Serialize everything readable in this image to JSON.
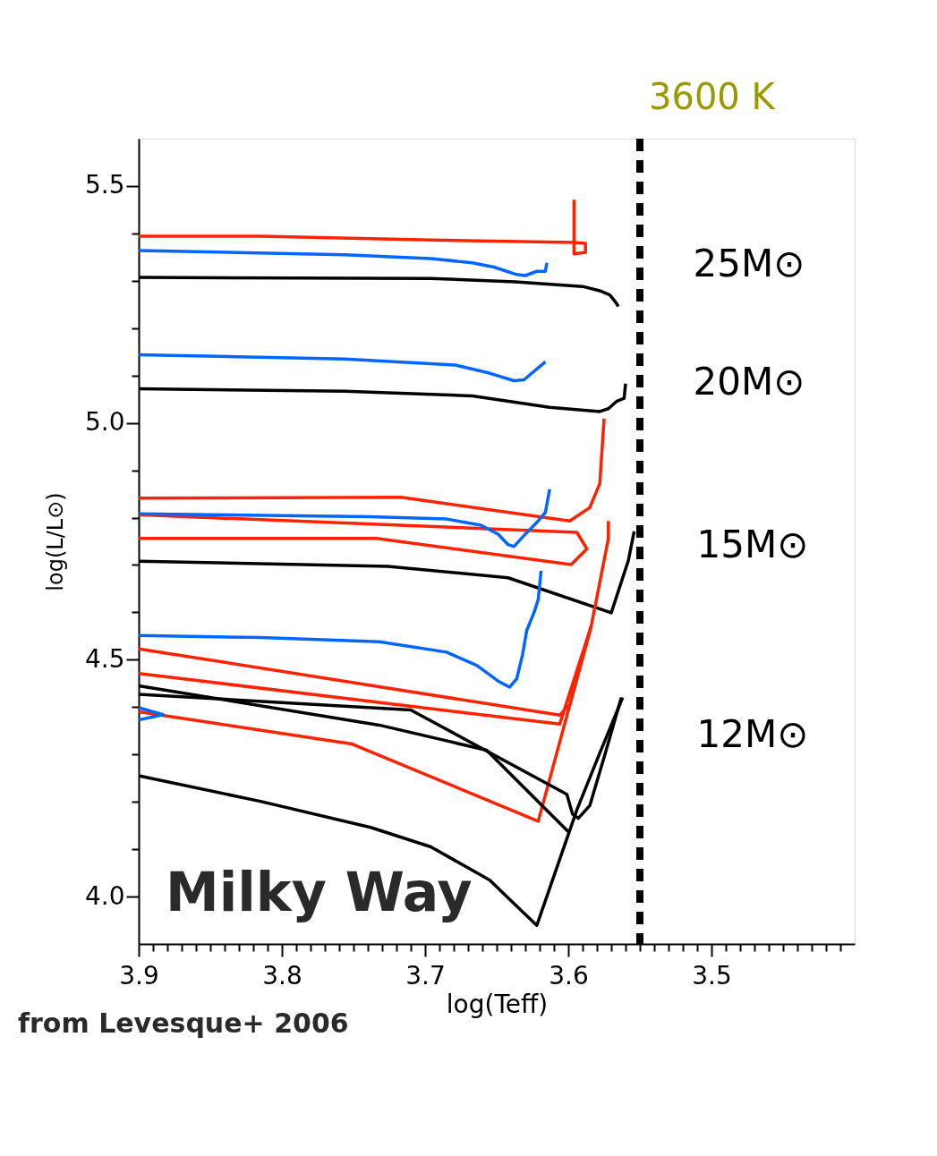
{
  "chart_data": {
    "type": "line",
    "xlabel": "log(Teff)",
    "ylabel": "log(L/L⊙)",
    "xlim": [
      3.9,
      3.4
    ],
    "ylim": [
      3.9,
      5.6
    ],
    "xticks": [
      3.9,
      {
        "value": 3.89,
        "label": null
      },
      {
        "value": 3.88,
        "label": null
      },
      {
        "value": 3.87,
        "label": null
      },
      {
        "value": 3.86,
        "label": null
      },
      {
        "value": 3.85,
        "label": null
      },
      {
        "value": 3.84,
        "label": null
      },
      {
        "value": 3.83,
        "label": null
      },
      {
        "value": 3.82,
        "label": null
      },
      {
        "value": 3.81,
        "label": null
      },
      3.8,
      {
        "value": 3.79,
        "label": null
      },
      {
        "value": 3.78,
        "label": null
      },
      {
        "value": 3.77,
        "label": null
      },
      {
        "value": 3.76,
        "label": null
      },
      {
        "value": 3.75,
        "label": null
      },
      {
        "value": 3.74,
        "label": null
      },
      {
        "value": 3.73,
        "label": null
      },
      {
        "value": 3.72,
        "label": null
      },
      {
        "value": 3.71,
        "label": null
      },
      3.7,
      {
        "value": 3.69,
        "label": null
      },
      {
        "value": 3.68,
        "label": null
      },
      {
        "value": 3.67,
        "label": null
      },
      {
        "value": 3.66,
        "label": null
      },
      {
        "value": 3.65,
        "label": null
      },
      {
        "value": 3.64,
        "label": null
      },
      {
        "value": 3.63,
        "label": null
      },
      {
        "value": 3.62,
        "label": null
      },
      {
        "value": 3.61,
        "label": null
      },
      3.6,
      {
        "value": 3.59,
        "label": null
      },
      {
        "value": 3.58,
        "label": null
      },
      {
        "value": 3.57,
        "label": null
      },
      {
        "value": 3.56,
        "label": null
      },
      {
        "value": 3.55,
        "label": null
      },
      {
        "value": 3.54,
        "label": null
      },
      {
        "value": 3.53,
        "label": null
      },
      {
        "value": 3.52,
        "label": null
      },
      {
        "value": 3.51,
        "label": null
      },
      3.5,
      {
        "value": 3.49,
        "label": null
      },
      {
        "value": 3.48,
        "label": null
      },
      {
        "value": 3.47,
        "label": null
      },
      {
        "value": 3.46,
        "label": null
      },
      {
        "value": 3.45,
        "label": null
      },
      {
        "value": 3.44,
        "label": null
      },
      {
        "value": 3.43,
        "label": null
      },
      {
        "value": 3.42,
        "label": null
      },
      {
        "value": 3.41,
        "label": null
      }
    ],
    "yticks": [
      {
        "value": 4.0,
        "label": "4.0"
      },
      {
        "value": 4.1,
        "label": null
      },
      {
        "value": 4.2,
        "label": null
      },
      {
        "value": 4.3,
        "label": null
      },
      {
        "value": 4.4,
        "label": null
      },
      4.5,
      {
        "value": 4.6,
        "label": null
      },
      {
        "value": 4.7,
        "label": null
      },
      {
        "value": 4.8,
        "label": null
      },
      {
        "value": 4.9,
        "label": null
      },
      {
        "value": 5.0,
        "label": "5.0"
      },
      {
        "value": 5.1,
        "label": null
      },
      {
        "value": 5.2,
        "label": null
      },
      {
        "value": 5.3,
        "label": null
      },
      {
        "value": 5.4,
        "label": null
      },
      5.5
    ],
    "grid": false,
    "legend": false,
    "line_style": "solid",
    "marker": "none",
    "series": [
      {
        "color": "#ff2200",
        "x": [
          3.9,
          3.815,
          3.696,
          3.596,
          3.588,
          3.588,
          3.596,
          3.596
        ],
        "values": [
          5.394,
          5.394,
          5.386,
          5.381,
          5.379,
          5.36,
          5.357,
          5.471
        ]
      },
      {
        "color": "#0066ff",
        "x": [
          3.9,
          3.756,
          3.696,
          3.667,
          3.652,
          3.637,
          3.63,
          3.622,
          3.616,
          3.615
        ],
        "values": [
          5.364,
          5.355,
          5.347,
          5.338,
          5.329,
          5.314,
          5.311,
          5.32,
          5.32,
          5.338
        ]
      },
      {
        "color": "#000000",
        "x": [
          3.9,
          3.696,
          3.637,
          3.59,
          3.578,
          3.571,
          3.567,
          3.565
        ],
        "values": [
          5.307,
          5.305,
          5.298,
          5.288,
          5.279,
          5.27,
          5.255,
          5.246
        ]
      },
      {
        "color": "#0066ff",
        "x": [
          3.9,
          3.756,
          3.679,
          3.655,
          3.638,
          3.631,
          3.616
        ],
        "values": [
          5.144,
          5.135,
          5.122,
          5.105,
          5.089,
          5.091,
          5.129
        ]
      },
      {
        "color": "#000000",
        "x": [
          3.9,
          3.756,
          3.667,
          3.613,
          3.578,
          3.572,
          3.566,
          3.561,
          3.56
        ],
        "values": [
          5.072,
          5.067,
          5.057,
          5.033,
          5.024,
          5.03,
          5.046,
          5.052,
          5.083
        ]
      },
      {
        "color": "#ff2200",
        "x": [
          3.575,
          3.578,
          3.585,
          3.599,
          3.717,
          3.9
        ],
        "values": [
          5.009,
          4.872,
          4.821,
          4.793,
          4.843,
          4.841
        ]
      },
      {
        "color": "#ff2200",
        "x": [
          3.9,
          3.594,
          3.587,
          3.598,
          3.734,
          3.9
        ],
        "values": [
          4.806,
          4.769,
          4.734,
          4.701,
          4.756,
          4.756
        ]
      },
      {
        "color": "#0066ff",
        "x": [
          3.9,
          3.738,
          3.685,
          3.661,
          3.649,
          3.642,
          3.638,
          3.631,
          3.621,
          3.616,
          3.613
        ],
        "values": [
          4.808,
          4.802,
          4.797,
          4.784,
          4.765,
          4.743,
          4.739,
          4.762,
          4.793,
          4.811,
          4.86
        ]
      },
      {
        "color": "#000000",
        "x": [
          3.9,
          3.726,
          3.642,
          3.57,
          3.566,
          3.558,
          3.554
        ],
        "values": [
          4.708,
          4.697,
          4.673,
          4.599,
          4.636,
          4.71,
          4.771
        ]
      },
      {
        "color": "#ff2200",
        "x": [
          3.572,
          3.572,
          3.584,
          3.599,
          3.606,
          3.9
        ],
        "values": [
          4.793,
          4.756,
          4.571,
          4.405,
          4.383,
          4.523
        ]
      },
      {
        "color": "#ff2200",
        "x": [
          3.9,
          3.606,
          3.584
        ],
        "values": [
          4.471,
          4.364,
          4.571
        ]
      },
      {
        "color": "#ff2200",
        "x": [
          3.9,
          3.751,
          3.621,
          3.584
        ],
        "values": [
          4.39,
          4.322,
          4.159,
          4.571
        ]
      },
      {
        "color": "#0066ff",
        "x": [
          3.9,
          3.815,
          3.732,
          3.685,
          3.664,
          3.649,
          3.641,
          3.636,
          3.632,
          3.629,
          3.624,
          3.621,
          3.619
        ],
        "values": [
          4.551,
          4.547,
          4.538,
          4.516,
          4.488,
          4.455,
          4.442,
          4.46,
          4.51,
          4.562,
          4.599,
          4.627,
          4.688
        ]
      },
      {
        "color": "#0066ff",
        "x": [
          3.9,
          3.883,
          3.9
        ],
        "values": [
          4.399,
          4.384,
          4.373
        ]
      },
      {
        "color": "#000000",
        "x": [
          3.9,
          3.732,
          3.657,
          3.6
        ],
        "values": [
          4.445,
          4.362,
          4.309,
          4.137
        ]
      },
      {
        "color": "#000000",
        "x": [
          3.9,
          3.71,
          3.601,
          3.597,
          3.593,
          3.585,
          3.575,
          3.563
        ],
        "values": [
          4.427,
          4.394,
          4.216,
          4.174,
          4.165,
          4.192,
          4.294,
          4.42
        ]
      },
      {
        "color": "#000000",
        "x": [
          3.9,
          3.815,
          3.738,
          3.696,
          3.655,
          3.622,
          3.594,
          3.578,
          3.562
        ],
        "values": [
          4.255,
          4.201,
          4.146,
          4.105,
          4.035,
          3.939,
          4.183,
          4.303,
          4.42
        ]
      }
    ],
    "ref_lines": [
      {
        "axis": "x",
        "value": 3.55,
        "label": "3600 K",
        "color": "#000000",
        "line_style": "dashed"
      }
    ],
    "annotations": [
      "25M⊙",
      "20M⊙",
      "15M⊙",
      "12M⊙",
      "Milky Way",
      "from Levesque+ 2006"
    ]
  }
}
